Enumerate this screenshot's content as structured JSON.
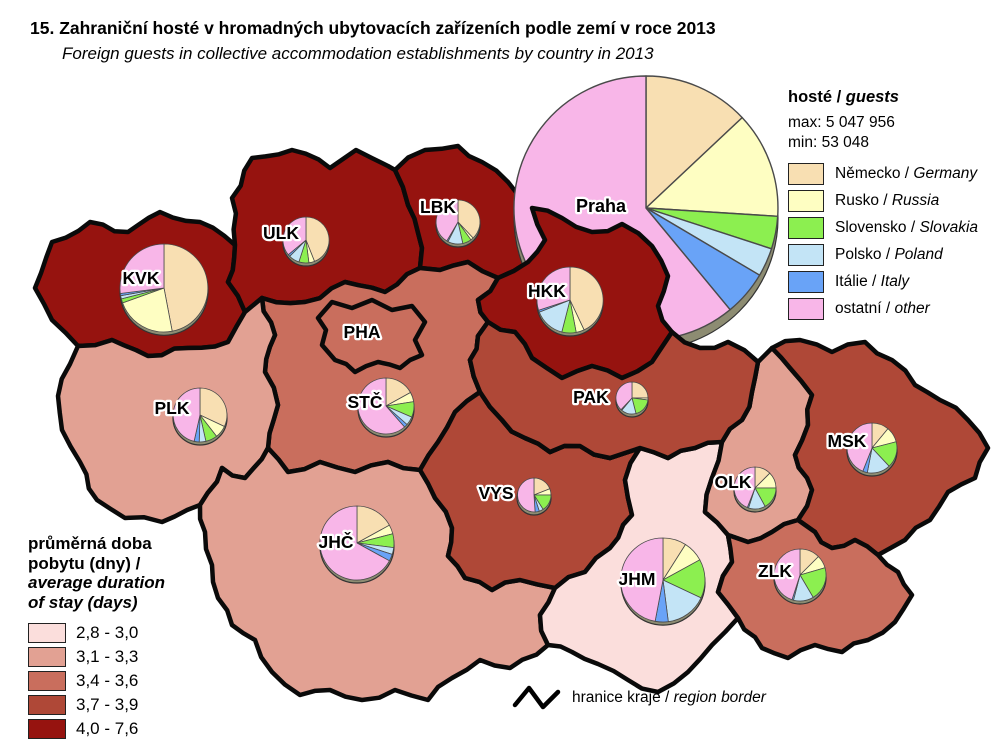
{
  "title": "15. Zahraniční hosté v hromadných ubytovacích zařízeních podle zemí v roce 2013",
  "subtitle": "Foreign guests in collective accommodation establishments by country in 2013",
  "guest_legend": {
    "heading_cs": "hosté /",
    "heading_en": "guests",
    "max_label": "max: 5 047 956",
    "min_label": "min: 53 048",
    "countries": [
      {
        "cs": "Německo",
        "en": "Germany",
        "color": "#F8DFB2"
      },
      {
        "cs": "Rusko",
        "en": "Russia",
        "color": "#FEFEC2"
      },
      {
        "cs": "Slovensko",
        "en": "Slovakia",
        "color": "#8CEF50"
      },
      {
        "cs": "Polsko",
        "en": "Poland",
        "color": "#C3E4F6"
      },
      {
        "cs": "Itálie",
        "en": "Italy",
        "color": "#69A3F7"
      },
      {
        "cs": "ostatní",
        "en": "other",
        "color": "#F8B6E8"
      }
    ]
  },
  "duration_legend": {
    "heading_cs_lines": [
      "průměrná doba",
      "pobytu (dny) /"
    ],
    "heading_en_lines": [
      "average duration",
      "of stay (days)"
    ],
    "classes": [
      {
        "label": "2,8 - 3,0",
        "color": "#FBDEDC"
      },
      {
        "label": "3,1 - 3,3",
        "color": "#E2A193"
      },
      {
        "label": "3,4 - 3,6",
        "color": "#C96E5D"
      },
      {
        "label": "3,7 - 3,9",
        "color": "#AF4837"
      },
      {
        "label": "4,0 - 7,6",
        "color": "#96130F"
      }
    ]
  },
  "border_legend": {
    "label_cs": "hranice kraje /",
    "label_en": "region border"
  },
  "chart_data": {
    "type": "map-pie",
    "title": "Zahraniční hosté v hromadných ubytovacích zařízeních podle zemí v roce 2013",
    "series_order": [
      "Německo/Germany",
      "Rusko/Russia",
      "Slovensko/Slovakia",
      "Polsko/Poland",
      "Itálie/Italy",
      "ostatní/other"
    ],
    "guests_max": 5047956,
    "guests_min": 53048,
    "pie_size_encodes": "hosté / guests",
    "regions": [
      {
        "code": "PHA",
        "label": "PHA",
        "pie_label": "Praha",
        "duration_class": "3,4 - 3,6",
        "shares": [
          0.13,
          0.13,
          0.04,
          0.035,
          0.055,
          0.61
        ]
      },
      {
        "code": "STC",
        "label": "STČ",
        "duration_class": "3,4 - 3,6",
        "shares": [
          0.17,
          0.055,
          0.09,
          0.05,
          0.02,
          0.615
        ]
      },
      {
        "code": "JHC",
        "label": "JHČ",
        "duration_class": "3,1 - 3,3",
        "shares": [
          0.17,
          0.04,
          0.06,
          0.03,
          0.03,
          0.67
        ]
      },
      {
        "code": "PLK",
        "label": "PLK",
        "duration_class": "3,1 - 3,3",
        "shares": [
          0.32,
          0.075,
          0.07,
          0.04,
          0.03,
          0.465
        ]
      },
      {
        "code": "KVK",
        "label": "KVK",
        "duration_class": "4,0 - 7,6",
        "shares": [
          0.47,
          0.225,
          0.015,
          0.012,
          0.008,
          0.27
        ]
      },
      {
        "code": "ULK",
        "label": "ULK",
        "duration_class": "4,0 - 7,6",
        "shares": [
          0.44,
          0.04,
          0.07,
          0.075,
          0.015,
          0.36
        ]
      },
      {
        "code": "LBK",
        "label": "LBK",
        "duration_class": "4,0 - 7,6",
        "shares": [
          0.38,
          0.02,
          0.065,
          0.11,
          0.01,
          0.415
        ]
      },
      {
        "code": "HKK",
        "label": "HKK",
        "duration_class": "4,0 - 7,6",
        "shares": [
          0.43,
          0.04,
          0.07,
          0.15,
          0.01,
          0.3
        ]
      },
      {
        "code": "PAK",
        "label": "PAK",
        "duration_class": "3,7 - 3,9",
        "shares": [
          0.25,
          0.02,
          0.19,
          0.15,
          0.01,
          0.38
        ]
      },
      {
        "code": "VYS",
        "label": "VYS",
        "duration_class": "3,7 - 3,9",
        "shares": [
          0.19,
          0.06,
          0.16,
          0.04,
          0.04,
          0.51
        ]
      },
      {
        "code": "JHM",
        "label": "JHM",
        "duration_class": "2,8 - 3,0",
        "shares": [
          0.09,
          0.08,
          0.15,
          0.16,
          0.05,
          0.47
        ]
      },
      {
        "code": "OLK",
        "label": "OLK",
        "duration_class": "3,1 - 3,3",
        "shares": [
          0.125,
          0.125,
          0.17,
          0.13,
          0.01,
          0.44
        ]
      },
      {
        "code": "MSK",
        "label": "MSK",
        "duration_class": "3,7 - 3,9",
        "shares": [
          0.11,
          0.1,
          0.17,
          0.15,
          0.03,
          0.44
        ]
      },
      {
        "code": "ZLK",
        "label": "ZLK",
        "duration_class": "3,4 - 3,6",
        "shares": [
          0.125,
          0.08,
          0.21,
          0.125,
          0.01,
          0.45
        ]
      }
    ]
  }
}
